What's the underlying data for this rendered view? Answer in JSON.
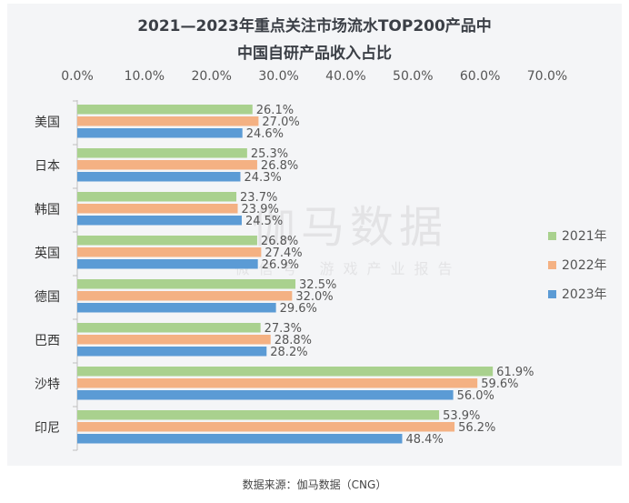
{
  "title_line1": "2021—2023年重点关注市场流水TOP200产品中",
  "title_line2": "中国自研产品收入占比",
  "source": "数据来源：伽马数据（CNG）",
  "watermark": "伽马数据",
  "watermark_sub": "微信号 游戏产业报告",
  "colors": {
    "2021年": "#a9d18e",
    "2022年": "#f4b183",
    "2023年": "#5b9bd5"
  },
  "chart_data": {
    "type": "bar",
    "orientation": "horizontal",
    "categories": [
      "美国",
      "日本",
      "韩国",
      "英国",
      "德国",
      "巴西",
      "沙特",
      "印尼"
    ],
    "series": [
      {
        "name": "2021年",
        "values": [
          26.1,
          25.3,
          23.7,
          26.8,
          32.5,
          27.3,
          61.9,
          53.9
        ]
      },
      {
        "name": "2022年",
        "values": [
          27.0,
          26.8,
          23.9,
          27.4,
          32.0,
          28.8,
          59.6,
          56.2
        ]
      },
      {
        "name": "2023年",
        "values": [
          24.6,
          24.3,
          24.5,
          26.9,
          29.6,
          28.2,
          56.0,
          48.4
        ]
      }
    ],
    "xlim": [
      0,
      70
    ],
    "xticks": [
      "0.0%",
      "10.0%",
      "20.0%",
      "30.0%",
      "40.0%",
      "50.0%",
      "60.0%",
      "70.0%"
    ],
    "value_suffix": "%",
    "legend_position": "right"
  }
}
